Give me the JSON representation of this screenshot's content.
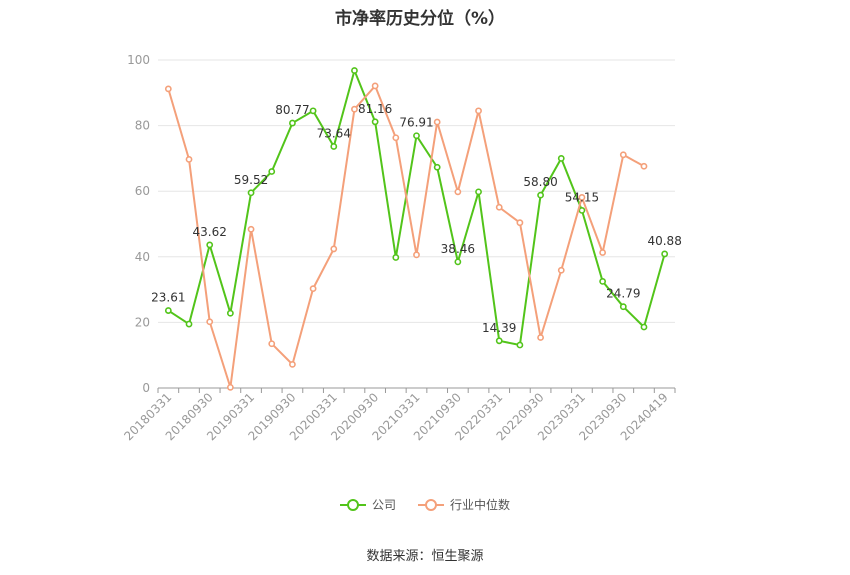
{
  "source": "数据来源：恒生聚源",
  "chart_data": {
    "type": "line",
    "title": "市净率历史分位（%）",
    "ylim": [
      0,
      100
    ],
    "yticks": [
      0,
      20,
      40,
      60,
      80,
      100
    ],
    "x": [
      "20180331",
      "20180630",
      "20180930",
      "20181231",
      "20190331",
      "20190630",
      "20190930",
      "20191231",
      "20200331",
      "20200630",
      "20200930",
      "20201231",
      "20210331",
      "20210630",
      "20210930",
      "20211231",
      "20220331",
      "20220630",
      "20220930",
      "20221231",
      "20230331",
      "20230630",
      "20230930",
      "20231231",
      "20240419"
    ],
    "xtick_labels": [
      "20180331",
      "20180930",
      "20190331",
      "20190930",
      "20200331",
      "20200930",
      "20210331",
      "20210930",
      "20220331",
      "20220930",
      "20230331",
      "20230930",
      "20240419"
    ],
    "series": [
      {
        "name": "公司",
        "color": "#52c41a",
        "values": [
          23.61,
          19.5,
          43.62,
          22.8,
          59.52,
          66,
          80.77,
          84.5,
          73.64,
          96.8,
          81.16,
          39.8,
          76.91,
          67.3,
          38.46,
          59.8,
          14.39,
          13.1,
          58.8,
          70,
          54.15,
          32.5,
          24.79,
          18.6,
          40.88
        ]
      },
      {
        "name": "行业中位数",
        "color": "#f4a07a",
        "values": [
          91.2,
          69.7,
          20.2,
          0.2,
          48.4,
          13.5,
          7.2,
          30.3,
          42.4,
          85,
          92.1,
          76.3,
          40.6,
          81.1,
          59.8,
          84.5,
          55.1,
          50.4,
          15.4,
          35.9,
          58.1,
          41.3,
          71.1,
          67.6,
          null
        ]
      }
    ],
    "data_labels": [
      {
        "series": 0,
        "index": 0,
        "text": "23.61"
      },
      {
        "series": 0,
        "index": 2,
        "text": "43.62"
      },
      {
        "series": 0,
        "index": 4,
        "text": "59.52"
      },
      {
        "series": 0,
        "index": 6,
        "text": "80.77"
      },
      {
        "series": 0,
        "index": 8,
        "text": "73.64"
      },
      {
        "series": 0,
        "index": 10,
        "text": "81.16"
      },
      {
        "series": 0,
        "index": 12,
        "text": "76.91"
      },
      {
        "series": 0,
        "index": 14,
        "text": "38.46"
      },
      {
        "series": 0,
        "index": 16,
        "text": "14.39"
      },
      {
        "series": 0,
        "index": 18,
        "text": "58.80"
      },
      {
        "series": 0,
        "index": 20,
        "text": "54.15"
      },
      {
        "series": 0,
        "index": 22,
        "text": "24.79"
      },
      {
        "series": 0,
        "index": 24,
        "text": "40.88"
      }
    ],
    "legend_position": "bottom-center",
    "grid": true
  }
}
